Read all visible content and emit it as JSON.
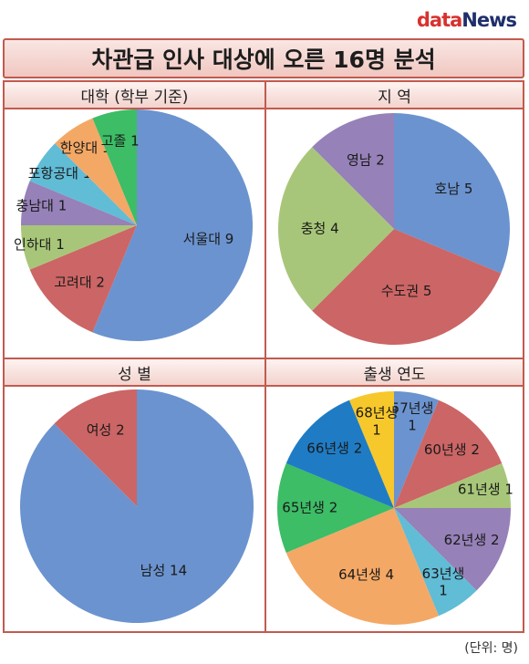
{
  "logo": {
    "prefix": "data",
    "suffix": "News"
  },
  "title": "차관급 인사 대상에 오른 16명 분석",
  "unit_note": "(단위: 명)",
  "chart_data": [
    {
      "type": "pie",
      "title": "대학 (학부 기준)",
      "slices": [
        {
          "label": "서울대 9",
          "value": 9,
          "color": "#6b93cf"
        },
        {
          "label": "고려대 2",
          "value": 2,
          "color": "#cc6565"
        },
        {
          "label": "인하대 1",
          "value": 1,
          "color": "#a8c679"
        },
        {
          "label": "충남대 1",
          "value": 1,
          "color": "#9681b8"
        },
        {
          "label": "포항공대 1",
          "value": 1,
          "color": "#61bcd6"
        },
        {
          "label": "한양대 1",
          "value": 1,
          "color": "#f4a865"
        },
        {
          "label": "고졸 1",
          "value": 1,
          "color": "#3cbd66"
        }
      ]
    },
    {
      "type": "pie",
      "title": "지 역",
      "slices": [
        {
          "label": "호남 5",
          "value": 5,
          "color": "#6b93cf"
        },
        {
          "label": "수도권 5",
          "value": 5,
          "color": "#cc6565"
        },
        {
          "label": "충청 4",
          "value": 4,
          "color": "#a8c679"
        },
        {
          "label": "영남 2",
          "value": 2,
          "color": "#9681b8"
        }
      ]
    },
    {
      "type": "pie",
      "title": "성 별",
      "slices": [
        {
          "label": "남성 14",
          "value": 14,
          "color": "#6b93cf"
        },
        {
          "label": "여성 2",
          "value": 2,
          "color": "#cc6565"
        }
      ]
    },
    {
      "type": "pie",
      "title": "출생 연도",
      "slices": [
        {
          "label": "57년생 1",
          "value": 1,
          "color": "#6b93cf"
        },
        {
          "label": "60년생 2",
          "value": 2,
          "color": "#cc6565"
        },
        {
          "label": "61년생 1",
          "value": 1,
          "color": "#a8c679"
        },
        {
          "label": "62년생 2",
          "value": 2,
          "color": "#9681b8"
        },
        {
          "label": "63년생 1",
          "value": 1,
          "color": "#61bcd6"
        },
        {
          "label": "64년생 4",
          "value": 4,
          "color": "#f4a865"
        },
        {
          "label": "65년생 2",
          "value": 2,
          "color": "#3cbd66"
        },
        {
          "label": "66년생 2",
          "value": 2,
          "color": "#1f7cc4"
        },
        {
          "label": "68년생 1",
          "value": 1,
          "color": "#f7c82b"
        }
      ]
    }
  ]
}
